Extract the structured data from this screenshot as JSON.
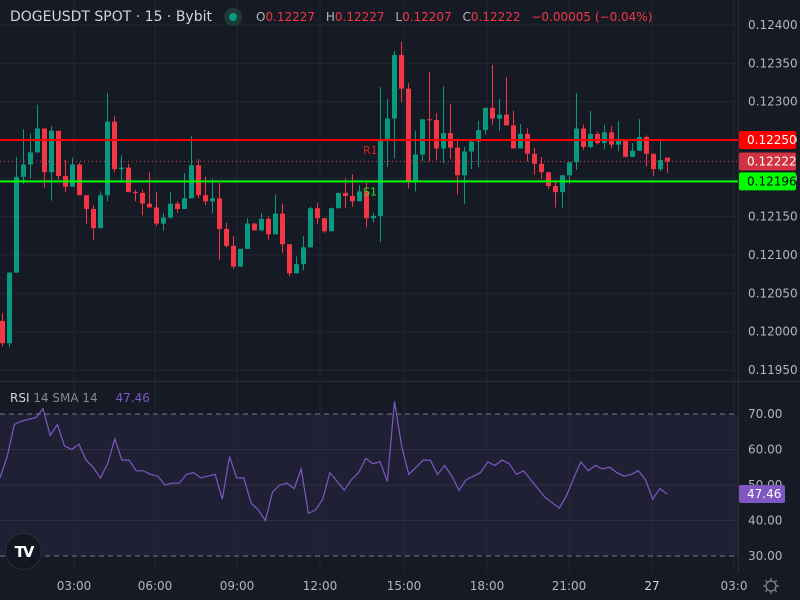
{
  "header": {
    "symbol_title": "DOGEUSDT SPOT · 15 · Bybit",
    "status_color": "#089981",
    "ohlc": {
      "o_label": "O",
      "o": "0.12227",
      "h_label": "H",
      "h": "0.12227",
      "l_label": "L",
      "l": "0.12207",
      "c_label": "C",
      "c": "0.12222",
      "change": "−0.00005 (−0.04%)"
    }
  },
  "rsi_legend": {
    "name": "RSI",
    "params": "14 SMA 14",
    "value": "47.46"
  },
  "colors": {
    "up": "#089981",
    "down": "#f23645",
    "resistance": "#ff0000",
    "support": "#00ff00",
    "rsi": "#7e57c2",
    "background": "#161a25",
    "grid": "#232733"
  },
  "chart_data": [
    {
      "type": "candlestick",
      "title": "DOGEUSDT SPOT · 15 · Bybit",
      "interval": "15m",
      "y_axis": {
        "ticks": [
          "0.12400",
          "0.12350",
          "0.12300",
          "0.12250",
          "0.12200",
          "0.12150",
          "0.12100",
          "0.12050",
          "0.12000",
          "0.11950"
        ],
        "range": [
          0.1193,
          0.1241
        ]
      },
      "x_axis": {
        "ticks": [
          "03:00",
          "06:00",
          "09:00",
          "12:00",
          "15:00",
          "18:00",
          "21:00",
          "27",
          "03:0"
        ]
      },
      "price_labels": [
        {
          "label": "0.12250",
          "kind": "resistance R1",
          "color": "#ff0000"
        },
        {
          "label": "0.12222",
          "kind": "last price",
          "color": "#f23645"
        },
        {
          "label": "0.12196",
          "kind": "support S1",
          "color": "#00ff00"
        }
      ],
      "lines": [
        {
          "name": "R1",
          "value": 0.1225,
          "color": "#ff0000"
        },
        {
          "name": "S1",
          "value": 0.12196,
          "color": "#00ff00"
        },
        {
          "name": "last",
          "value": 0.12222,
          "style": "dotted",
          "color": "#f23645"
        }
      ],
      "candles": [
        [
          0.12014,
          0.12024,
          0.11985,
          0.11981
        ],
        [
          0.11985,
          0.12078,
          0.12077,
          0.1198
        ],
        [
          0.12077,
          0.12228,
          0.12202,
          0.12082
        ],
        [
          0.12202,
          0.12264,
          0.12218,
          0.12193
        ],
        [
          0.12218,
          0.12258,
          0.12234,
          0.122
        ],
        [
          0.12234,
          0.12296,
          0.12265,
          0.12233
        ],
        [
          0.12265,
          0.1226,
          0.12208,
          0.12188
        ],
        [
          0.12208,
          0.12268,
          0.12262,
          0.12171
        ],
        [
          0.12262,
          0.12262,
          0.12203,
          0.12198
        ],
        [
          0.12203,
          0.12224,
          0.12189,
          0.12182
        ],
        [
          0.12189,
          0.12227,
          0.12218,
          0.12213
        ],
        [
          0.12218,
          0.1222,
          0.12178,
          0.12178
        ],
        [
          0.12178,
          0.12166,
          0.1216,
          0.1214
        ],
        [
          0.1216,
          0.12165,
          0.12135,
          0.1212
        ],
        [
          0.12135,
          0.12183,
          0.12178,
          0.12176
        ],
        [
          0.12178,
          0.12311,
          0.12274,
          0.1217
        ],
        [
          0.12274,
          0.12281,
          0.12212,
          0.12208
        ],
        [
          0.12212,
          0.1223,
          0.12214,
          0.12197
        ],
        [
          0.12214,
          0.12219,
          0.12182,
          0.12182
        ],
        [
          0.12182,
          0.12185,
          0.12181,
          0.1217
        ],
        [
          0.12181,
          0.12185,
          0.12167,
          0.12152
        ],
        [
          0.12167,
          0.12208,
          0.12162,
          0.12162
        ],
        [
          0.12162,
          0.12182,
          0.12141,
          0.12138
        ],
        [
          0.12141,
          0.12155,
          0.12149,
          0.12132
        ],
        [
          0.12149,
          0.12182,
          0.12167,
          0.12147
        ],
        [
          0.12167,
          0.1217,
          0.1216,
          0.12155
        ],
        [
          0.1216,
          0.12207,
          0.12174,
          0.12169
        ],
        [
          0.12174,
          0.12255,
          0.12217,
          0.12197
        ],
        [
          0.12217,
          0.12225,
          0.12178,
          0.12174
        ],
        [
          0.12178,
          0.12202,
          0.1217,
          0.12165
        ],
        [
          0.1217,
          0.12199,
          0.12174,
          0.12155
        ],
        [
          0.12174,
          0.12194,
          0.12134,
          0.12094
        ],
        [
          0.12134,
          0.12142,
          0.12112,
          0.1211
        ],
        [
          0.12112,
          0.12125,
          0.12085,
          0.12082
        ],
        [
          0.12085,
          0.12106,
          0.12108,
          0.12084
        ],
        [
          0.12108,
          0.12148,
          0.12141,
          0.12147
        ],
        [
          0.12141,
          0.12142,
          0.12132,
          0.12133
        ],
        [
          0.12132,
          0.12155,
          0.12147,
          0.12131
        ],
        [
          0.12147,
          0.1215,
          0.12127,
          0.1212
        ],
        [
          0.12127,
          0.12179,
          0.12154,
          0.12127
        ],
        [
          0.12154,
          0.12167,
          0.12114,
          0.12103
        ],
        [
          0.12114,
          0.12093,
          0.12076,
          0.12072
        ],
        [
          0.12076,
          0.12098,
          0.12088,
          0.12076
        ],
        [
          0.12088,
          0.12125,
          0.1211,
          0.1208
        ],
        [
          0.1211,
          0.12163,
          0.12161,
          0.12112
        ],
        [
          0.12161,
          0.12168,
          0.12148,
          0.1214
        ],
        [
          0.12148,
          0.12139,
          0.12131,
          0.12129
        ],
        [
          0.12131,
          0.12162,
          0.12161,
          0.12132
        ],
        [
          0.12161,
          0.12176,
          0.12181,
          0.12161
        ],
        [
          0.12181,
          0.122,
          0.12177,
          0.12161
        ],
        [
          0.12177,
          0.12205,
          0.1217,
          0.12163
        ],
        [
          0.1217,
          0.12191,
          0.12183,
          0.12179
        ],
        [
          0.12183,
          0.12195,
          0.12148,
          0.12136
        ],
        [
          0.12148,
          0.12155,
          0.12151,
          0.12142
        ],
        [
          0.12151,
          0.12319,
          0.1225,
          0.12117
        ],
        [
          0.1225,
          0.12304,
          0.12278,
          0.12215
        ],
        [
          0.12278,
          0.12366,
          0.12361,
          0.12226
        ],
        [
          0.12361,
          0.12378,
          0.12317,
          0.12299
        ],
        [
          0.12317,
          0.12324,
          0.12197,
          0.12187
        ],
        [
          0.12197,
          0.12262,
          0.12231,
          0.12183
        ],
        [
          0.12231,
          0.12275,
          0.12277,
          0.12222
        ],
        [
          0.12277,
          0.12339,
          0.12276,
          0.12222
        ],
        [
          0.12276,
          0.12285,
          0.12239,
          0.12224
        ],
        [
          0.12239,
          0.1232,
          0.12259,
          0.1222
        ],
        [
          0.12259,
          0.12297,
          0.1224,
          0.12225
        ],
        [
          0.1224,
          0.12252,
          0.12204,
          0.12179
        ],
        [
          0.12204,
          0.12241,
          0.12235,
          0.12167
        ],
        [
          0.12235,
          0.1225,
          0.12248,
          0.12212
        ],
        [
          0.12248,
          0.12275,
          0.12263,
          0.12215
        ],
        [
          0.12263,
          0.12289,
          0.12292,
          0.12257
        ],
        [
          0.12292,
          0.12348,
          0.12278,
          0.1227
        ],
        [
          0.12278,
          0.12304,
          0.12283,
          0.12262
        ],
        [
          0.12283,
          0.12332,
          0.12269,
          0.12276
        ],
        [
          0.12269,
          0.12288,
          0.12239,
          0.12244
        ],
        [
          0.12239,
          0.12271,
          0.12258,
          0.12253
        ],
        [
          0.12258,
          0.12265,
          0.12232,
          0.12222
        ],
        [
          0.12232,
          0.1224,
          0.12219,
          0.12205
        ],
        [
          0.12219,
          0.12228,
          0.12208,
          0.12199
        ],
        [
          0.12208,
          0.12194,
          0.1219,
          0.12186
        ],
        [
          0.1219,
          0.12197,
          0.12182,
          0.12162
        ],
        [
          0.12182,
          0.12184,
          0.12204,
          0.12162
        ],
        [
          0.12204,
          0.1221,
          0.12221,
          0.12193
        ],
        [
          0.12221,
          0.12311,
          0.12265,
          0.12211
        ],
        [
          0.12265,
          0.1227,
          0.12241,
          0.12237
        ],
        [
          0.12241,
          0.12288,
          0.12258,
          0.12239
        ],
        [
          0.12258,
          0.12261,
          0.12246,
          0.12244
        ],
        [
          0.12246,
          0.1227,
          0.1226,
          0.12238
        ],
        [
          0.1226,
          0.12268,
          0.12244,
          0.12239
        ],
        [
          0.12244,
          0.12275,
          0.1225,
          0.12235
        ],
        [
          0.1225,
          0.12238,
          0.12228,
          0.12232
        ],
        [
          0.12228,
          0.12246,
          0.12236,
          0.12231
        ],
        [
          0.12236,
          0.12277,
          0.12254,
          0.12238
        ],
        [
          0.12254,
          0.12256,
          0.12232,
          0.12216
        ],
        [
          0.12232,
          0.12223,
          0.12212,
          0.12203
        ],
        [
          0.12212,
          0.12251,
          0.12224,
          0.12209
        ],
        [
          0.12227,
          0.12227,
          0.12222,
          0.12207
        ]
      ],
      "candle_format": "[open, high, close, low]"
    },
    {
      "type": "line",
      "title": "RSI 14 SMA 14",
      "current_value": 47.46,
      "y_axis": {
        "ticks": [
          "70.00",
          "60.00",
          "50.00",
          "40.00",
          "30.00"
        ],
        "range": [
          27,
          75
        ]
      },
      "bands": {
        "upper": 70,
        "middle": 50,
        "lower": 30
      },
      "values": [
        52,
        58,
        67,
        68,
        68.5,
        69,
        71.5,
        64,
        67,
        61,
        60,
        61.5,
        57,
        55,
        52,
        56,
        63,
        57,
        57,
        54,
        54,
        53,
        52.5,
        50,
        50.5,
        50.5,
        53,
        53.5,
        52,
        52.5,
        53,
        46,
        58,
        52,
        52,
        45,
        43,
        40,
        48,
        50,
        50.5,
        49,
        54.5,
        42,
        43,
        46,
        53.5,
        51,
        48.5,
        51.5,
        53.5,
        57.5,
        56,
        56.5,
        51,
        73.5,
        61,
        53,
        55,
        57,
        57,
        53,
        55.5,
        52.5,
        48.5,
        51.5,
        52.5,
        53.5,
        56.5,
        55.5,
        57,
        56,
        53,
        54,
        51.5,
        49,
        46.5,
        45,
        43.5,
        47,
        52,
        56.5,
        54,
        55.5,
        54.5,
        55,
        53.5,
        52.5,
        53,
        54,
        51.5,
        46,
        49,
        47.46
      ]
    }
  ]
}
